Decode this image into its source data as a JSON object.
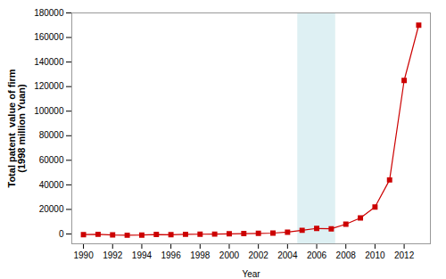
{
  "chart_data": {
    "type": "line",
    "x": [
      1990,
      1991,
      1992,
      1993,
      1994,
      1995,
      1996,
      1997,
      1998,
      1999,
      2000,
      2001,
      2002,
      2003,
      2004,
      2005,
      2006,
      2007,
      2008,
      2009,
      2010,
      2011,
      2012,
      2013
    ],
    "values": [
      -500,
      -300,
      -800,
      -1000,
      -900,
      -400,
      -600,
      -300,
      -200,
      -100,
      100,
      300,
      500,
      700,
      1500,
      3000,
      4500,
      4200,
      8000,
      13000,
      22000,
      44000,
      125000,
      170000
    ],
    "color": "#cc0000",
    "marker": "square",
    "xlabel": "Year",
    "ylabel": "Total patent  value of firm\n(1998 million Yuan)",
    "xlim": [
      1989.2,
      2013.8
    ],
    "xticks": [
      1990,
      1992,
      1994,
      1996,
      1998,
      2000,
      2002,
      2004,
      2006,
      2008,
      2010,
      2012
    ],
    "ylim": [
      -8000,
      180000
    ],
    "yticks": [
      0,
      20000,
      40000,
      60000,
      80000,
      100000,
      120000,
      140000,
      160000,
      180000
    ],
    "grid": false,
    "highlight": {
      "x_start": 2004.7,
      "x_end": 2007.3,
      "color": "#cce8ed"
    }
  }
}
